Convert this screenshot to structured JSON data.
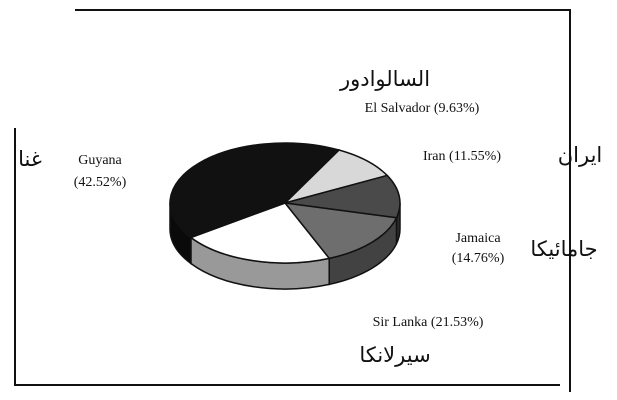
{
  "chart_data": {
    "type": "pie",
    "categories": [
      "El Salvador",
      "Iran",
      "Jamaica",
      "Sir Lanka",
      "Guyana"
    ],
    "local_names": [
      "السالوادور",
      "ایران",
      "جامائیکا",
      "سیرلانکا",
      "غنا"
    ],
    "values": [
      9.63,
      11.55,
      14.76,
      21.53,
      42.52
    ],
    "value_labels": [
      "(9.63%)",
      "(11.55%)",
      "(14.76%)",
      "(21.53%)",
      "(42.52%)"
    ],
    "colors": [
      "#d8d8d8",
      "#4a4a4a",
      "#6e6e6e",
      "#ffffff",
      "#111111"
    ]
  }
}
